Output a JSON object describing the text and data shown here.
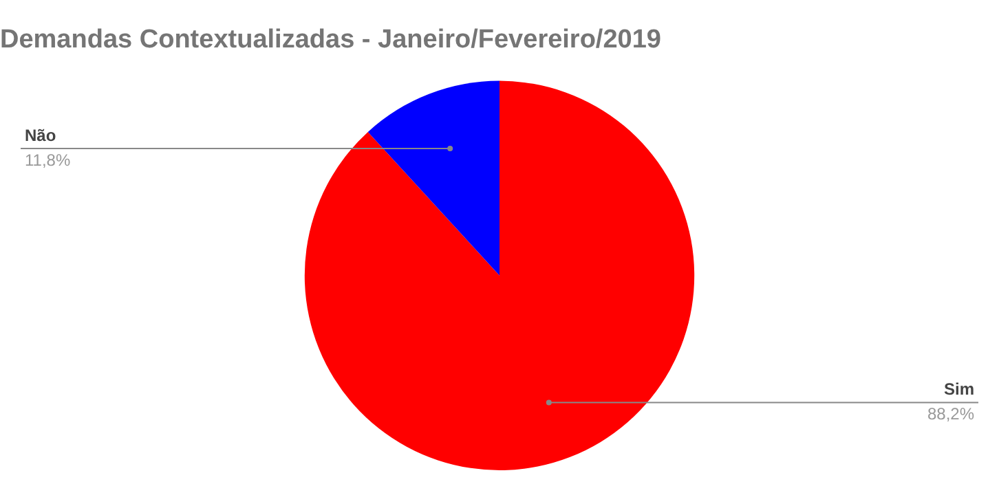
{
  "chart_data": {
    "type": "pie",
    "title": "Demandas Contextualizadas - Janeiro/Fevereiro/2019",
    "categories": [
      "Sim",
      "Não"
    ],
    "values": [
      88.2,
      11.8
    ],
    "colors": [
      "#ff0000",
      "#0000ff"
    ],
    "value_labels": [
      "88,2%",
      "11,8%"
    ],
    "legend": false
  }
}
